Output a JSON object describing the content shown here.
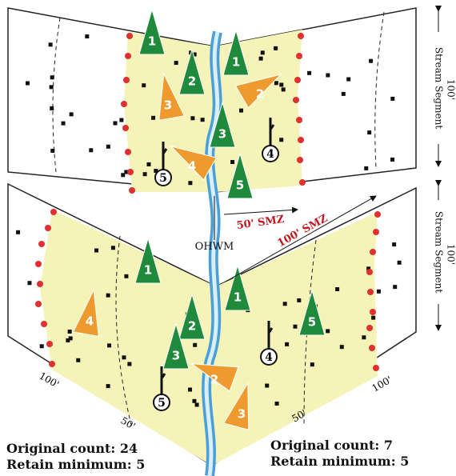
{
  "top_panel": {
    "side_label": "Stream Segment",
    "side_dim": "100'",
    "trees": [
      {
        "label": "1",
        "color": "#1f8a3c"
      },
      {
        "label": "2",
        "color": "#1f8a3c"
      },
      {
        "label": "1",
        "color": "#1f8a3c"
      },
      {
        "label": "3",
        "color": "#1f8a3c"
      },
      {
        "label": "5",
        "color": "#1f8a3c"
      },
      {
        "label": "3",
        "color": "#ee9a2e"
      },
      {
        "label": "2",
        "color": "#ee9a2e"
      },
      {
        "label": "4",
        "color": "#ee9a2e"
      }
    ],
    "snags": [
      "4",
      "5"
    ]
  },
  "ohwm": "OHWM",
  "smz_labels": [
    "50' SMZ",
    "100' SMZ"
  ],
  "bottom_panel": {
    "side_label": "Stream Segment",
    "side_dim": "100'",
    "trees": [
      {
        "label": "1",
        "color": "#1f8a3c"
      },
      {
        "label": "2",
        "color": "#1f8a3c"
      },
      {
        "label": "1",
        "color": "#1f8a3c"
      },
      {
        "label": "3",
        "color": "#1f8a3c"
      },
      {
        "label": "5",
        "color": "#1f8a3c"
      },
      {
        "label": "4",
        "color": "#ee9a2e"
      },
      {
        "label": "2",
        "color": "#ee9a2e"
      },
      {
        "label": "3",
        "color": "#ee9a2e"
      }
    ],
    "snags": [
      "4",
      "5"
    ],
    "distance_labels": [
      "100'",
      "50'",
      "50'",
      "100'"
    ]
  },
  "left_summary": {
    "original_count": "Original count: 24",
    "retain_minimum": "Retain minimum: 5"
  },
  "right_summary": {
    "original_count": "Original count: 7",
    "retain_minimum": "Retain minimum: 5"
  }
}
